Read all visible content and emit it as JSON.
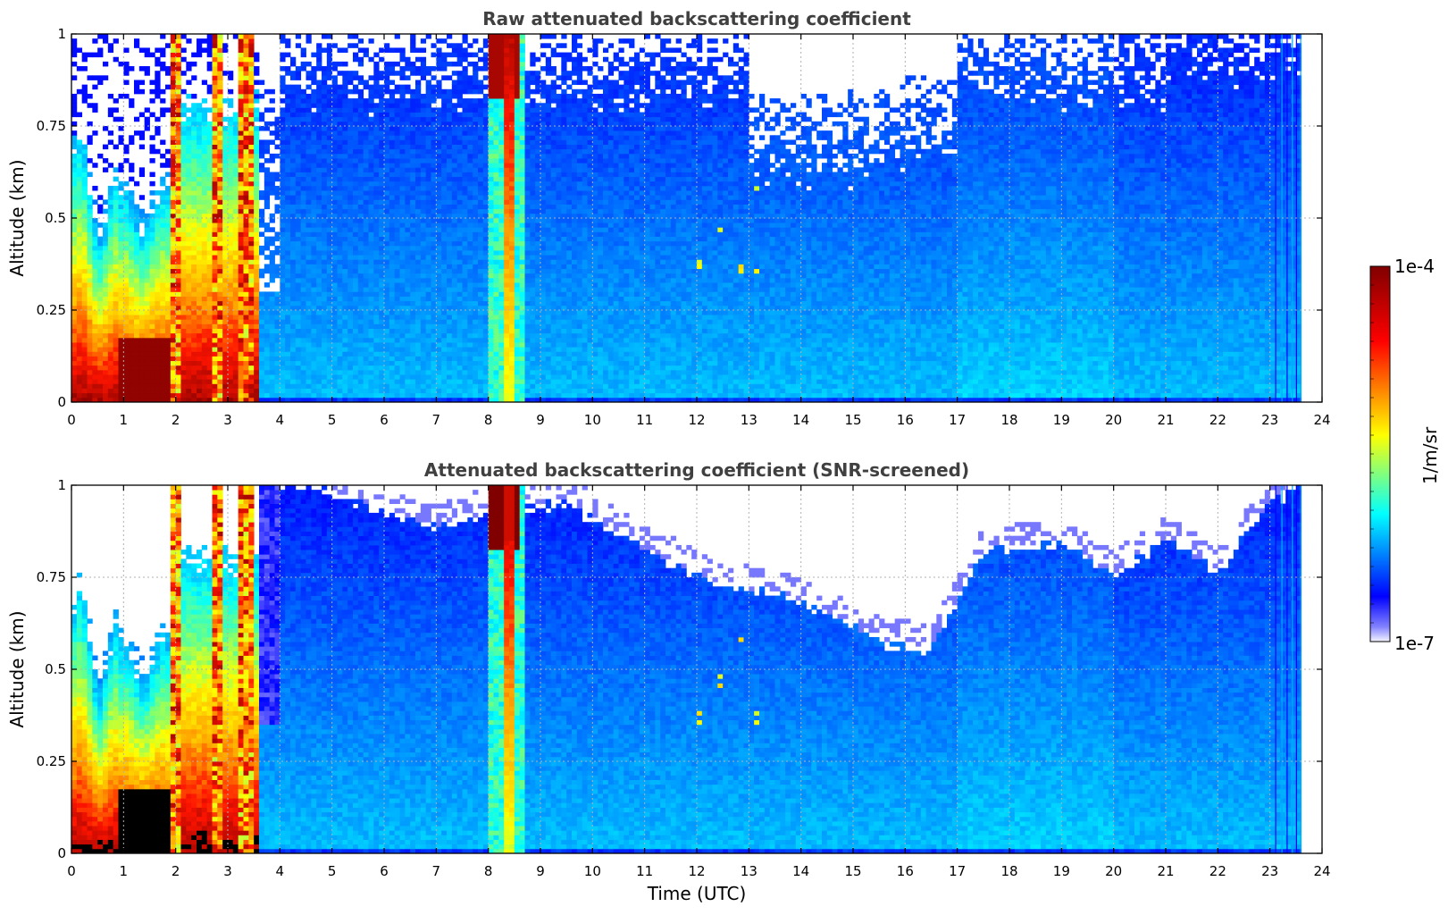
{
  "chart_data": [
    {
      "type": "heatmap",
      "title": "Raw attenuated backscattering coefficient",
      "xlabel": "",
      "ylabel": "Altitude (km)",
      "xlim": [
        0,
        24
      ],
      "ylim": [
        0,
        1
      ],
      "x_ticks": [
        "0",
        "1",
        "2",
        "3",
        "4",
        "5",
        "6",
        "7",
        "8",
        "9",
        "10",
        "11",
        "12",
        "13",
        "14",
        "15",
        "16",
        "17",
        "18",
        "19",
        "20",
        "21",
        "22",
        "23",
        "24"
      ],
      "y_ticks": [
        "0",
        "0.25",
        "0.5",
        "0.75",
        "1"
      ],
      "grid": true,
      "colormap": "jet",
      "log_scale": true,
      "features": [
        {
          "time_range": [
            0,
            3.6
          ],
          "altitude_top_km": 1.0,
          "description": "high backscatter near surface, saturated up to about 0.15 km"
        },
        {
          "time_range": [
            8.0,
            8.7
          ],
          "altitude_top_km": 1.0,
          "description": "strong vertical column, max at top"
        },
        {
          "time_range": [
            3.6,
            23.6
          ],
          "altitude_top_km": 0.6,
          "description": "moderate blue backscatter layer, noisy above"
        }
      ]
    },
    {
      "type": "heatmap",
      "title": "Attenuated backscattering coefficient (SNR-screened)",
      "xlabel": "Time (UTC)",
      "ylabel": "Altitude (km)",
      "xlim": [
        0,
        24
      ],
      "ylim": [
        0,
        1
      ],
      "x_ticks": [
        "0",
        "1",
        "2",
        "3",
        "4",
        "5",
        "6",
        "7",
        "8",
        "9",
        "10",
        "11",
        "12",
        "13",
        "14",
        "15",
        "16",
        "17",
        "18",
        "19",
        "20",
        "21",
        "22",
        "23",
        "24"
      ],
      "y_ticks": [
        "0",
        "0.25",
        "0.5",
        "0.75",
        "1"
      ],
      "grid": true,
      "colormap": "jet",
      "log_scale": true,
      "boundary_layer_top_km": [
        [
          3.6,
          1.0
        ],
        [
          4.5,
          1.0
        ],
        [
          5.5,
          0.95
        ],
        [
          7.0,
          0.88
        ],
        [
          8.0,
          0.92
        ],
        [
          9.5,
          0.95
        ],
        [
          11.0,
          0.82
        ],
        [
          12.5,
          0.72
        ],
        [
          13.5,
          0.7
        ],
        [
          14.5,
          0.65
        ],
        [
          15.5,
          0.57
        ],
        [
          16.5,
          0.55
        ],
        [
          17.5,
          0.82
        ],
        [
          19.0,
          0.84
        ],
        [
          20.0,
          0.75
        ],
        [
          21.0,
          0.85
        ],
        [
          22.0,
          0.76
        ],
        [
          23.0,
          0.95
        ],
        [
          23.6,
          1.0
        ]
      ]
    }
  ],
  "colorbar": {
    "label": "1/m/sr",
    "max_label": "1e-4",
    "min_label": "1e-7",
    "colormap": "jet"
  }
}
